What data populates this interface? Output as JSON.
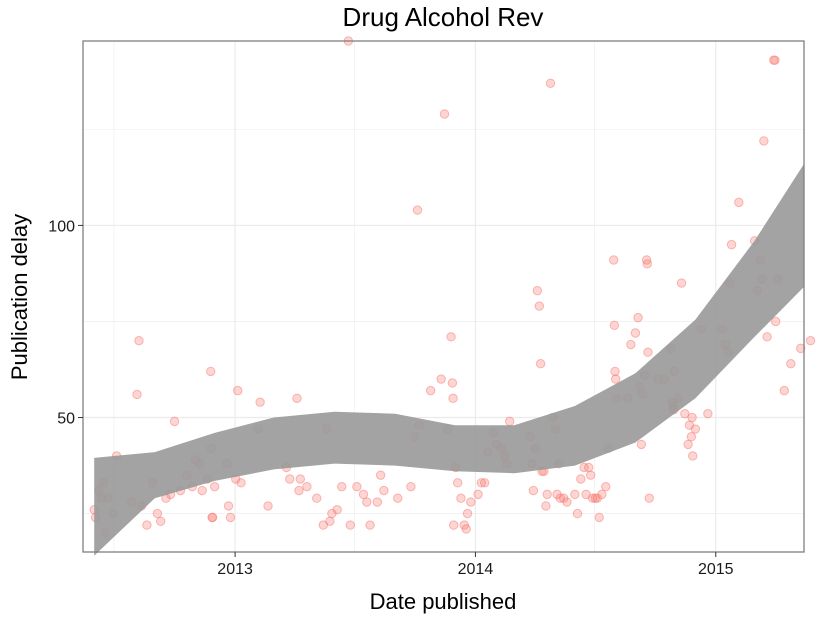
{
  "chart_data": {
    "type": "scatter",
    "title": "Drug Alcohol Rev",
    "xlabel": "Date published",
    "ylabel": "Publication delay",
    "x_ticks": [
      "2013",
      "2014",
      "2015"
    ],
    "y_ticks": [
      50,
      100
    ],
    "xlim": [
      "2012-05-15",
      "2015-05-15"
    ],
    "ylim": [
      15,
      148
    ],
    "grid": true,
    "colors": {
      "points": "#f8766d",
      "ribbon": "#999999",
      "panel_border": "#7f7f7f",
      "grid": "#ebebeb"
    },
    "points": [
      [
        "2012-06-01",
        26
      ],
      [
        "2012-06-03",
        24
      ],
      [
        "2012-06-08",
        31
      ],
      [
        "2012-06-12",
        29
      ],
      [
        "2012-06-15",
        33
      ],
      [
        "2012-06-18",
        20
      ],
      [
        "2012-06-22",
        29
      ],
      [
        "2012-06-30",
        25
      ],
      [
        "2012-07-05",
        40
      ],
      [
        "2012-07-28",
        28
      ],
      [
        "2012-08-05",
        56
      ],
      [
        "2012-08-08",
        70
      ],
      [
        "2012-08-12",
        27
      ],
      [
        "2012-08-20",
        22
      ],
      [
        "2012-08-28",
        33
      ],
      [
        "2012-09-05",
        25
      ],
      [
        "2012-09-10",
        23
      ],
      [
        "2012-09-18",
        29
      ],
      [
        "2012-09-25",
        30
      ],
      [
        "2012-10-01",
        49
      ],
      [
        "2012-10-10",
        31
      ],
      [
        "2012-10-20",
        35
      ],
      [
        "2012-10-28",
        32
      ],
      [
        "2012-11-02",
        39
      ],
      [
        "2012-11-08",
        38
      ],
      [
        "2012-11-12",
        31
      ],
      [
        "2012-11-20",
        34
      ],
      [
        "2012-11-25",
        62
      ],
      [
        "2012-11-26",
        42
      ],
      [
        "2012-11-27",
        24
      ],
      [
        "2012-11-28",
        24
      ],
      [
        "2012-12-01",
        32
      ],
      [
        "2012-12-20",
        38
      ],
      [
        "2012-12-22",
        27
      ],
      [
        "2012-12-25",
        24
      ],
      [
        "2013-01-02",
        34
      ],
      [
        "2013-01-05",
        57
      ],
      [
        "2013-01-10",
        33
      ],
      [
        "2013-02-05",
        47
      ],
      [
        "2013-02-08",
        54
      ],
      [
        "2013-02-20",
        27
      ],
      [
        "2013-03-20",
        37
      ],
      [
        "2013-03-25",
        34
      ],
      [
        "2013-04-05",
        55
      ],
      [
        "2013-04-08",
        31
      ],
      [
        "2013-04-10",
        34
      ],
      [
        "2013-04-20",
        32
      ],
      [
        "2013-05-05",
        29
      ],
      [
        "2013-05-15",
        22
      ],
      [
        "2013-05-20",
        47
      ],
      [
        "2013-05-25",
        23
      ],
      [
        "2013-05-28",
        25
      ],
      [
        "2013-06-05",
        26
      ],
      [
        "2013-06-12",
        32
      ],
      [
        "2013-06-22",
        148
      ],
      [
        "2013-06-25",
        22
      ],
      [
        "2013-07-05",
        32
      ],
      [
        "2013-07-15",
        30
      ],
      [
        "2013-07-20",
        28
      ],
      [
        "2013-07-25",
        22
      ],
      [
        "2013-08-05",
        28
      ],
      [
        "2013-08-10",
        35
      ],
      [
        "2013-08-15",
        31
      ],
      [
        "2013-09-05",
        29
      ],
      [
        "2013-09-25",
        32
      ],
      [
        "2013-10-05",
        104
      ],
      [
        "2013-10-01",
        45
      ],
      [
        "2013-10-08",
        48
      ],
      [
        "2013-10-25",
        57
      ],
      [
        "2013-11-15",
        129
      ],
      [
        "2013-11-10",
        60
      ],
      [
        "2013-11-20",
        47
      ],
      [
        "2013-11-25",
        71
      ],
      [
        "2013-11-27",
        59
      ],
      [
        "2013-11-28",
        55
      ],
      [
        "2013-11-29",
        22
      ],
      [
        "2013-12-02",
        37
      ],
      [
        "2013-12-05",
        33
      ],
      [
        "2013-12-10",
        29
      ],
      [
        "2013-12-15",
        22
      ],
      [
        "2013-12-18",
        21
      ],
      [
        "2013-12-20",
        25
      ],
      [
        "2013-12-25",
        28
      ],
      [
        "2014-01-05",
        30
      ],
      [
        "2014-01-10",
        33
      ],
      [
        "2014-01-15",
        33
      ],
      [
        "2014-01-20",
        41
      ],
      [
        "2014-01-28",
        46
      ],
      [
        "2014-02-02",
        43
      ],
      [
        "2014-02-10",
        42
      ],
      [
        "2014-02-15",
        40
      ],
      [
        "2014-02-18",
        38
      ],
      [
        "2014-02-22",
        49
      ],
      [
        "2014-03-25",
        45
      ],
      [
        "2014-03-28",
        38
      ],
      [
        "2014-03-30",
        31
      ],
      [
        "2014-04-02",
        42
      ],
      [
        "2014-04-05",
        83
      ],
      [
        "2014-04-08",
        79
      ],
      [
        "2014-04-10",
        64
      ],
      [
        "2014-04-12",
        36
      ],
      [
        "2014-04-15",
        36
      ],
      [
        "2014-04-18",
        27
      ],
      [
        "2014-04-20",
        30
      ],
      [
        "2014-04-25",
        137
      ],
      [
        "2014-04-28",
        50
      ],
      [
        "2014-05-02",
        47
      ],
      [
        "2014-05-05",
        30
      ],
      [
        "2014-05-08",
        38
      ],
      [
        "2014-05-10",
        29
      ],
      [
        "2014-05-15",
        29
      ],
      [
        "2014-05-20",
        28
      ],
      [
        "2014-06-01",
        30
      ],
      [
        "2014-06-05",
        25
      ],
      [
        "2014-06-10",
        34
      ],
      [
        "2014-06-15",
        37
      ],
      [
        "2014-06-18",
        30
      ],
      [
        "2014-06-22",
        37
      ],
      [
        "2014-06-25",
        35
      ],
      [
        "2014-06-28",
        29
      ],
      [
        "2014-07-02",
        29
      ],
      [
        "2014-07-05",
        29
      ],
      [
        "2014-07-08",
        24
      ],
      [
        "2014-07-12",
        30
      ],
      [
        "2014-07-18",
        32
      ],
      [
        "2014-07-22",
        42
      ],
      [
        "2014-07-30",
        91
      ],
      [
        "2014-07-31",
        74
      ],
      [
        "2014-08-01",
        62
      ],
      [
        "2014-08-02",
        60
      ],
      [
        "2014-08-03",
        55
      ],
      [
        "2014-08-20",
        55
      ],
      [
        "2014-08-25",
        69
      ],
      [
        "2014-09-01",
        72
      ],
      [
        "2014-09-05",
        76
      ],
      [
        "2014-09-08",
        58
      ],
      [
        "2014-09-10",
        43
      ],
      [
        "2014-09-12",
        56
      ],
      [
        "2014-09-15",
        61
      ],
      [
        "2014-09-18",
        91
      ],
      [
        "2014-09-19",
        90
      ],
      [
        "2014-09-20",
        67
      ],
      [
        "2014-09-22",
        29
      ],
      [
        "2014-10-05",
        60
      ],
      [
        "2014-10-15",
        60
      ],
      [
        "2014-10-25",
        68
      ],
      [
        "2014-10-27",
        54
      ],
      [
        "2014-10-28",
        53
      ],
      [
        "2014-10-29",
        52
      ],
      [
        "2014-10-30",
        62
      ],
      [
        "2014-11-05",
        55
      ],
      [
        "2014-11-10",
        85
      ],
      [
        "2014-11-15",
        51
      ],
      [
        "2014-11-20",
        43
      ],
      [
        "2014-11-22",
        48
      ],
      [
        "2014-11-25",
        45
      ],
      [
        "2014-11-26",
        50
      ],
      [
        "2014-11-27",
        40
      ],
      [
        "2014-12-01",
        47
      ],
      [
        "2014-12-10",
        73
      ],
      [
        "2014-12-20",
        51
      ],
      [
        "2015-01-10",
        73
      ],
      [
        "2015-01-15",
        69
      ],
      [
        "2015-01-20",
        67
      ],
      [
        "2015-01-22",
        85
      ],
      [
        "2015-01-25",
        95
      ],
      [
        "2015-02-05",
        106
      ],
      [
        "2015-03-01",
        96
      ],
      [
        "2015-03-05",
        83
      ],
      [
        "2015-03-10",
        91
      ],
      [
        "2015-03-12",
        86
      ],
      [
        "2015-03-15",
        122
      ],
      [
        "2015-03-20",
        71
      ],
      [
        "2015-03-30",
        143
      ],
      [
        "2015-04-01",
        143
      ],
      [
        "2015-04-02",
        75
      ],
      [
        "2015-04-05",
        86
      ],
      [
        "2015-04-15",
        57
      ],
      [
        "2015-04-25",
        64
      ],
      [
        "2015-05-10",
        68
      ],
      [
        "2015-05-25",
        70
      ]
    ],
    "smooth_band": {
      "x": [
        "2012-06-01",
        "2012-09-01",
        "2012-12-01",
        "2013-03-01",
        "2013-06-01",
        "2013-09-01",
        "2013-12-01",
        "2014-03-01",
        "2014-06-01",
        "2014-09-01",
        "2014-12-01",
        "2015-03-01",
        "2015-05-15"
      ],
      "lower": [
        14,
        29,
        33.5,
        36.5,
        38,
        37.5,
        36,
        35.5,
        37.5,
        43.5,
        55,
        71,
        84
      ],
      "upper": [
        39.5,
        41,
        46,
        50,
        51.5,
        51,
        48,
        48,
        53,
        61.5,
        75.5,
        96,
        116
      ]
    }
  }
}
